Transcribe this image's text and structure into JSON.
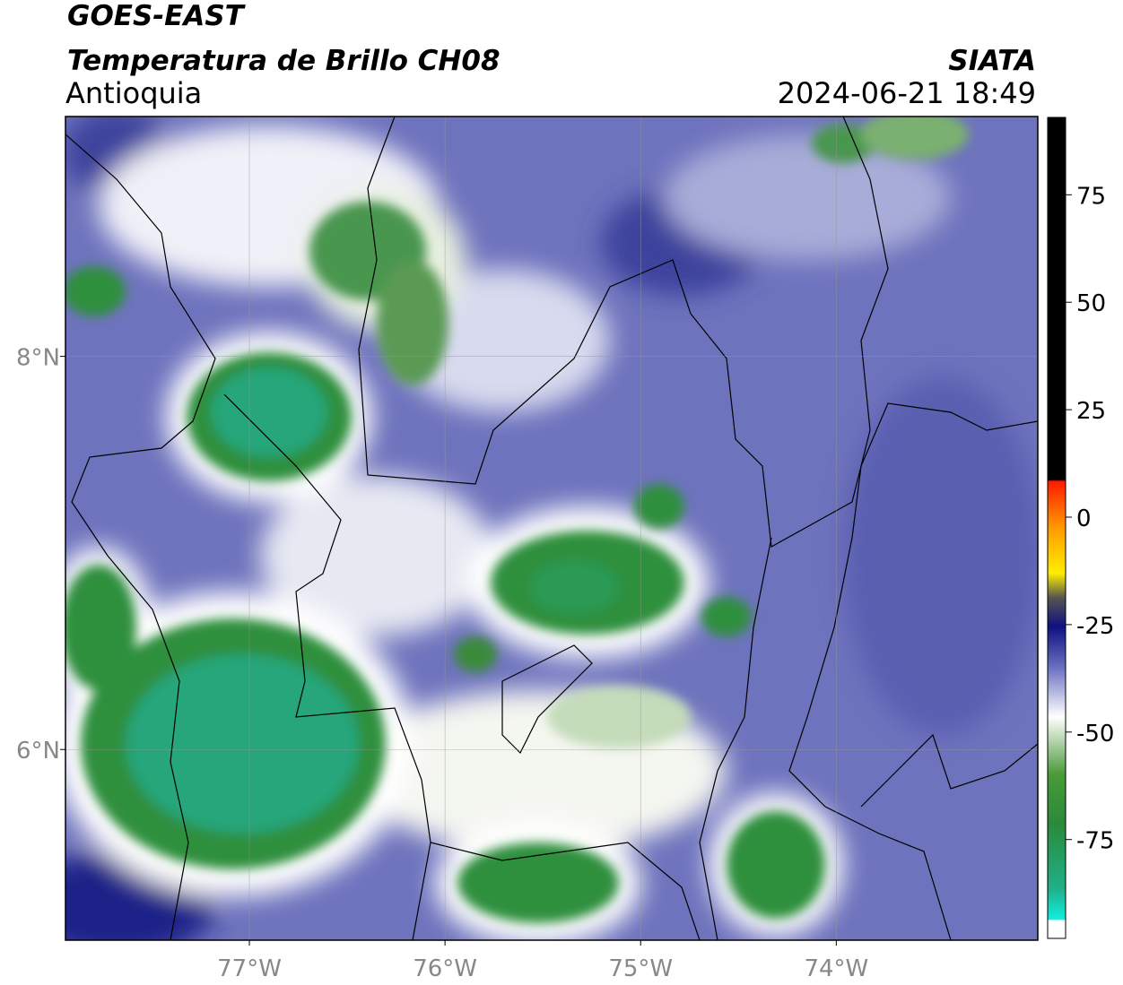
{
  "header": {
    "title": "GOES-EAST",
    "subtitle": "Temperatura de Brillo CH08",
    "source": "SIATA",
    "region": "Antioquia",
    "datetime": "2024-06-21 18:49"
  },
  "map": {
    "xlim": [
      -77.94,
      -72.97
    ],
    "ylim": [
      5.03,
      9.22
    ],
    "xticks": [
      {
        "value": -77,
        "label": "77°W"
      },
      {
        "value": -76,
        "label": "76°W"
      },
      {
        "value": -75,
        "label": "75°W"
      },
      {
        "value": -74,
        "label": "74°W"
      }
    ],
    "yticks": [
      {
        "value": 6,
        "label": "6°N"
      },
      {
        "value": 8,
        "label": "8°N"
      }
    ],
    "grid": true
  },
  "colorbar": {
    "lim": [
      -98,
      93
    ],
    "ticks": [
      -75,
      -50,
      -25,
      0,
      25,
      50,
      75
    ]
  }
}
